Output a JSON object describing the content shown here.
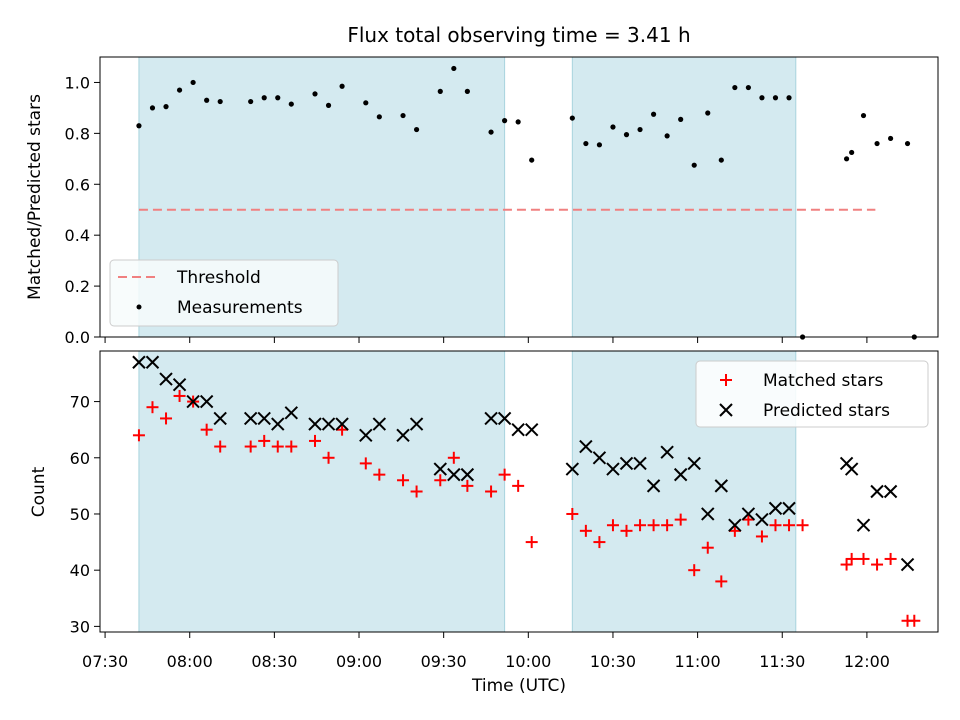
{
  "chart_data": [
    {
      "type": "scatter",
      "title": "Flux total observing time = 3.41 h",
      "ylabel": "Matched/Predicted stars",
      "ylim": [
        0,
        1.1
      ],
      "yticks": [
        "0.0",
        "0.2",
        "0.4",
        "0.6",
        "0.8",
        "1.0"
      ],
      "legend": "lower-left",
      "threshold": {
        "name": "Threshold",
        "value": 0.5,
        "x_start": 7.7,
        "x_end": 12.05,
        "color": "#f08080"
      },
      "series": [
        {
          "name": "Measurements",
          "color": "#000000",
          "points": [
            [
              7.7,
              0.83
            ],
            [
              7.78,
              0.9
            ],
            [
              7.86,
              0.905
            ],
            [
              7.94,
              0.97
            ],
            [
              8.02,
              1.0
            ],
            [
              8.1,
              0.93
            ],
            [
              8.18,
              0.925
            ],
            [
              8.36,
              0.925
            ],
            [
              8.44,
              0.94
            ],
            [
              8.52,
              0.94
            ],
            [
              8.6,
              0.915
            ],
            [
              8.74,
              0.955
            ],
            [
              8.82,
              0.91
            ],
            [
              8.9,
              0.985
            ],
            [
              9.04,
              0.92
            ],
            [
              9.12,
              0.865
            ],
            [
              9.26,
              0.87
            ],
            [
              9.34,
              0.815
            ],
            [
              9.48,
              0.965
            ],
            [
              9.56,
              1.055
            ],
            [
              9.64,
              0.965
            ],
            [
              9.78,
              0.805
            ],
            [
              9.86,
              0.85
            ],
            [
              9.94,
              0.845
            ],
            [
              10.02,
              0.695
            ],
            [
              10.26,
              0.86
            ],
            [
              10.34,
              0.76
            ],
            [
              10.42,
              0.755
            ],
            [
              10.5,
              0.825
            ],
            [
              10.58,
              0.795
            ],
            [
              10.66,
              0.815
            ],
            [
              10.74,
              0.875
            ],
            [
              10.82,
              0.79
            ],
            [
              10.9,
              0.855
            ],
            [
              10.98,
              0.675
            ],
            [
              11.06,
              0.88
            ],
            [
              11.14,
              0.695
            ],
            [
              11.22,
              0.98
            ],
            [
              11.3,
              0.98
            ],
            [
              11.38,
              0.94
            ],
            [
              11.46,
              0.94
            ],
            [
              11.54,
              0.94
            ],
            [
              11.62,
              0.0
            ],
            [
              11.88,
              0.7
            ],
            [
              11.91,
              0.725
            ],
            [
              11.98,
              0.87
            ],
            [
              12.06,
              0.76
            ],
            [
              12.14,
              0.78
            ],
            [
              12.24,
              0.76
            ],
            [
              12.28,
              0.0
            ]
          ]
        }
      ],
      "shaded_regions": [
        [
          7.7,
          9.86
        ],
        [
          10.26,
          11.58
        ]
      ],
      "shade_color": "#d4eaf0"
    },
    {
      "type": "scatter",
      "xlabel": "Time (UTC)",
      "ylabel": "Count",
      "ylim": [
        29,
        79
      ],
      "yticks": [
        "30",
        "40",
        "50",
        "60",
        "70"
      ],
      "xticks": [
        "07:30",
        "08:00",
        "08:30",
        "09:00",
        "09:30",
        "10:00",
        "10:30",
        "11:00",
        "11:30",
        "12:00"
      ],
      "xlim": [
        7.47,
        12.42
      ],
      "legend": "top-right",
      "series": [
        {
          "name": "Matched stars",
          "marker": "+",
          "color": "#ff0000",
          "points": [
            [
              7.7,
              64
            ],
            [
              7.78,
              69
            ],
            [
              7.86,
              67
            ],
            [
              7.94,
              71
            ],
            [
              8.02,
              70
            ],
            [
              8.1,
              65
            ],
            [
              8.18,
              62
            ],
            [
              8.36,
              62
            ],
            [
              8.44,
              63
            ],
            [
              8.52,
              62
            ],
            [
              8.6,
              62
            ],
            [
              8.74,
              63
            ],
            [
              8.82,
              60
            ],
            [
              8.9,
              65
            ],
            [
              9.04,
              59
            ],
            [
              9.12,
              57
            ],
            [
              9.26,
              56
            ],
            [
              9.34,
              54
            ],
            [
              9.48,
              56
            ],
            [
              9.56,
              60
            ],
            [
              9.64,
              55
            ],
            [
              9.78,
              54
            ],
            [
              9.86,
              57
            ],
            [
              9.94,
              55
            ],
            [
              10.02,
              45
            ],
            [
              10.26,
              50
            ],
            [
              10.34,
              47
            ],
            [
              10.42,
              45
            ],
            [
              10.5,
              48
            ],
            [
              10.58,
              47
            ],
            [
              10.66,
              48
            ],
            [
              10.74,
              48
            ],
            [
              10.82,
              48
            ],
            [
              10.9,
              49
            ],
            [
              10.98,
              40
            ],
            [
              11.06,
              44
            ],
            [
              11.14,
              38
            ],
            [
              11.22,
              47
            ],
            [
              11.3,
              49
            ],
            [
              11.38,
              46
            ],
            [
              11.46,
              48
            ],
            [
              11.54,
              48
            ],
            [
              11.62,
              48
            ],
            [
              11.88,
              41
            ],
            [
              11.91,
              42
            ],
            [
              11.98,
              42
            ],
            [
              12.06,
              41
            ],
            [
              12.14,
              42
            ],
            [
              12.24,
              31
            ],
            [
              12.28,
              31
            ]
          ]
        },
        {
          "name": "Predicted stars",
          "marker": "x",
          "color": "#000000",
          "points": [
            [
              7.7,
              77
            ],
            [
              7.78,
              77
            ],
            [
              7.86,
              74
            ],
            [
              7.94,
              73
            ],
            [
              8.02,
              70
            ],
            [
              8.1,
              70
            ],
            [
              8.18,
              67
            ],
            [
              8.36,
              67
            ],
            [
              8.44,
              67
            ],
            [
              8.52,
              66
            ],
            [
              8.6,
              68
            ],
            [
              8.74,
              66
            ],
            [
              8.82,
              66
            ],
            [
              8.9,
              66
            ],
            [
              9.04,
              64
            ],
            [
              9.12,
              66
            ],
            [
              9.26,
              64
            ],
            [
              9.34,
              66
            ],
            [
              9.48,
              58
            ],
            [
              9.56,
              57
            ],
            [
              9.64,
              57
            ],
            [
              9.78,
              67
            ],
            [
              9.86,
              67
            ],
            [
              9.94,
              65
            ],
            [
              10.02,
              65
            ],
            [
              10.26,
              58
            ],
            [
              10.34,
              62
            ],
            [
              10.42,
              60
            ],
            [
              10.5,
              58
            ],
            [
              10.58,
              59
            ],
            [
              10.66,
              59
            ],
            [
              10.74,
              55
            ],
            [
              10.82,
              61
            ],
            [
              10.9,
              57
            ],
            [
              10.98,
              59
            ],
            [
              11.06,
              50
            ],
            [
              11.14,
              55
            ],
            [
              11.22,
              48
            ],
            [
              11.3,
              50
            ],
            [
              11.38,
              49
            ],
            [
              11.46,
              51
            ],
            [
              11.54,
              51
            ],
            [
              11.88,
              59
            ],
            [
              11.91,
              58
            ],
            [
              11.98,
              48
            ],
            [
              12.06,
              54
            ],
            [
              12.14,
              54
            ],
            [
              12.24,
              41
            ]
          ]
        }
      ],
      "shaded_regions": [
        [
          7.7,
          9.86
        ],
        [
          10.26,
          11.58
        ]
      ],
      "shade_color": "#d4eaf0"
    }
  ]
}
